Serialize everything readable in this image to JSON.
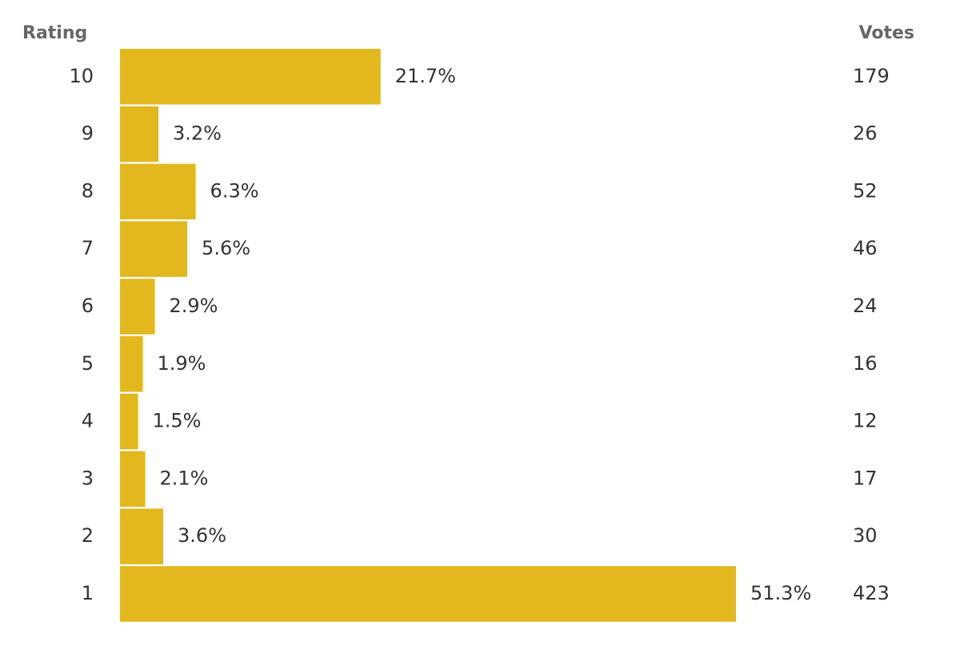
{
  "chart_data": {
    "type": "bar",
    "category_header": "Rating",
    "votes_header": "Votes",
    "categories": [
      "10",
      "9",
      "8",
      "7",
      "6",
      "5",
      "4",
      "3",
      "2",
      "1"
    ],
    "values": [
      21.7,
      3.2,
      6.3,
      5.6,
      2.9,
      1.9,
      1.5,
      2.1,
      3.6,
      51.3
    ],
    "value_labels": [
      "21.7%",
      "3.2%",
      "6.3%",
      "5.6%",
      "2.9%",
      "1.9%",
      "1.5%",
      "2.1%",
      "3.6%",
      "51.3%"
    ],
    "votes": [
      179,
      26,
      52,
      46,
      24,
      16,
      12,
      17,
      30,
      423
    ],
    "color": "#e3b81f"
  }
}
